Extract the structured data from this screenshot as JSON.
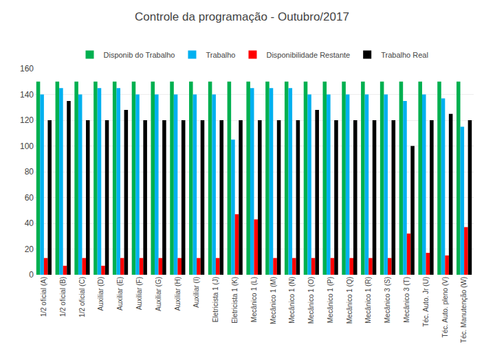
{
  "chart_data": {
    "type": "bar",
    "title": "Controle da programação - Outubro/2017",
    "categories": [
      "1/2 oficial (A)",
      "1/2 oficial (B)",
      "1/2 oficial (C)",
      "Auxiliar (D)",
      "Auxiliar (E)",
      "Auxiliar (F)",
      "Auxiliar (G)",
      "Auxiliar (H)",
      "Auxiliar (I)",
      "Eletricista 1 (J)",
      "Eletricista 1 (K)",
      "Mecânico 1 (L)",
      "Mecânico 1 (M)",
      "Mecânico 1 (N)",
      "Mecânico 1 (O)",
      "Mecânico 1 (P)",
      "Mecânico 1 (Q)",
      "Mecânico 1 (R)",
      "Mecânico 3 (S)",
      "Mecânico 3 (T)",
      "Téc. Auto. Jr (U)",
      "Téc. Auto. pleno (V)",
      "Téc. Manutenção (W)"
    ],
    "series": [
      {
        "name": "Disponib do Trabalho",
        "color": "#00B050",
        "values": [
          150,
          150,
          150,
          150,
          150,
          150,
          150,
          150,
          150,
          150,
          150,
          150,
          150,
          150,
          150,
          150,
          150,
          150,
          150,
          150,
          150,
          150,
          150
        ]
      },
      {
        "name": "Trabalho",
        "color": "#00B0F0",
        "values": [
          140,
          145,
          140,
          145,
          145,
          140,
          140,
          140,
          140,
          140,
          105,
          145,
          145,
          145,
          140,
          140,
          140,
          140,
          140,
          135,
          140,
          137,
          115
        ]
      },
      {
        "name": "Disponibilidade Restante",
        "color": "#FF0000",
        "values": [
          13,
          7,
          13,
          7,
          13,
          13,
          13,
          13,
          13,
          13,
          47,
          43,
          13,
          13,
          13,
          13,
          13,
          13,
          13,
          32,
          17,
          15,
          37
        ]
      },
      {
        "name": "Trabalho Real",
        "color": "#000000",
        "values": [
          120,
          135,
          120,
          120,
          128,
          120,
          120,
          120,
          120,
          120,
          120,
          120,
          120,
          120,
          128,
          120,
          120,
          120,
          120,
          100,
          120,
          125,
          120
        ]
      }
    ],
    "ylim": [
      0,
      160
    ],
    "yticks": [
      0,
      20,
      40,
      60,
      80,
      100,
      120,
      140,
      160
    ],
    "grid": true,
    "legend": "top"
  }
}
